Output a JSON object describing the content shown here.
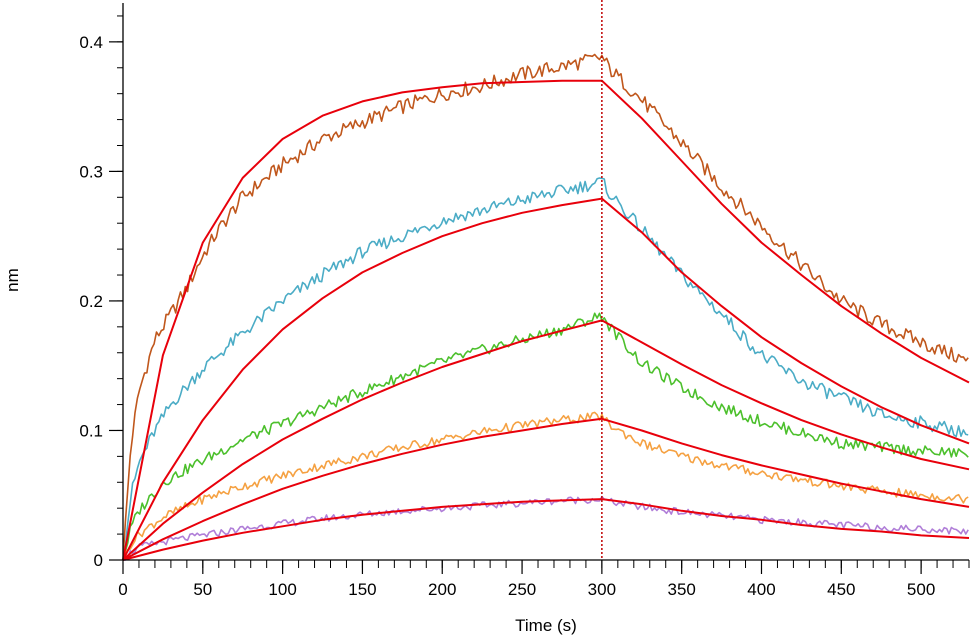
{
  "chart_data": {
    "type": "line",
    "xlabel": "Time (s)",
    "ylabel": "nm",
    "xlim": [
      0,
      530
    ],
    "ylim": [
      0,
      0.43
    ],
    "x_ticks": [
      0,
      50,
      100,
      150,
      200,
      250,
      300,
      350,
      400,
      450,
      500
    ],
    "x_tick_labels": [
      "0",
      "50",
      "100",
      "150",
      "200",
      "250",
      "300",
      "350",
      "400",
      "450",
      "500"
    ],
    "y_ticks": [
      0,
      0.1,
      0.2,
      0.3,
      0.4
    ],
    "y_tick_labels": [
      "0",
      "0.1",
      "0.2",
      "0.3",
      "0.4"
    ],
    "x_minor_step": 10,
    "y_minor_step": 0.02,
    "dissociation_start": 300,
    "marker_line": {
      "x": 300,
      "color": "#c00000",
      "style": "dotted"
    },
    "fit_color": "#e8000b",
    "series": [
      {
        "color": "#c0571c",
        "x": [
          0,
          5,
          10,
          20,
          30,
          40,
          50,
          60,
          75,
          100,
          125,
          150,
          175,
          200,
          225,
          250,
          275,
          300,
          305,
          325,
          350,
          375,
          400,
          425,
          450,
          475,
          500,
          530
        ],
        "y": [
          0,
          0.09,
          0.13,
          0.17,
          0.19,
          0.21,
          0.235,
          0.255,
          0.28,
          0.305,
          0.325,
          0.338,
          0.35,
          0.36,
          0.366,
          0.375,
          0.381,
          0.388,
          0.379,
          0.355,
          0.322,
          0.288,
          0.258,
          0.228,
          0.2,
          0.182,
          0.168,
          0.153
        ]
      },
      {
        "color": "#4bacc6",
        "x": [
          0,
          5,
          10,
          20,
          30,
          50,
          75,
          100,
          125,
          150,
          175,
          200,
          225,
          250,
          275,
          300,
          305,
          325,
          350,
          375,
          400,
          425,
          450,
          475,
          500,
          530
        ],
        "y": [
          0,
          0.05,
          0.075,
          0.1,
          0.12,
          0.148,
          0.175,
          0.2,
          0.22,
          0.238,
          0.25,
          0.262,
          0.27,
          0.278,
          0.285,
          0.292,
          0.283,
          0.255,
          0.22,
          0.19,
          0.158,
          0.138,
          0.125,
          0.112,
          0.106,
          0.098
        ]
      },
      {
        "color": "#4cc02c",
        "x": [
          0,
          5,
          10,
          25,
          50,
          75,
          100,
          125,
          150,
          175,
          200,
          225,
          250,
          275,
          300,
          305,
          325,
          350,
          375,
          400,
          425,
          450,
          475,
          500,
          530
        ],
        "y": [
          0,
          0.025,
          0.038,
          0.06,
          0.077,
          0.093,
          0.105,
          0.118,
          0.13,
          0.142,
          0.153,
          0.162,
          0.17,
          0.178,
          0.189,
          0.18,
          0.152,
          0.133,
          0.118,
          0.107,
          0.098,
          0.09,
          0.087,
          0.084,
          0.082
        ]
      },
      {
        "color": "#f5a142",
        "x": [
          0,
          5,
          10,
          25,
          50,
          75,
          100,
          125,
          150,
          175,
          200,
          225,
          250,
          275,
          300,
          305,
          325,
          350,
          375,
          400,
          425,
          450,
          475,
          500,
          530
        ],
        "y": [
          0,
          0.013,
          0.02,
          0.033,
          0.047,
          0.057,
          0.065,
          0.073,
          0.08,
          0.087,
          0.093,
          0.099,
          0.104,
          0.108,
          0.111,
          0.104,
          0.09,
          0.08,
          0.073,
          0.067,
          0.062,
          0.057,
          0.053,
          0.05,
          0.047
        ]
      },
      {
        "color": "#b07ed8",
        "x": [
          0,
          5,
          10,
          25,
          50,
          75,
          100,
          125,
          150,
          175,
          200,
          225,
          250,
          275,
          300,
          305,
          325,
          350,
          375,
          400,
          425,
          450,
          475,
          500,
          530
        ],
        "y": [
          0,
          0.006,
          0.01,
          0.014,
          0.019,
          0.024,
          0.028,
          0.032,
          0.035,
          0.038,
          0.04,
          0.042,
          0.044,
          0.046,
          0.047,
          0.045,
          0.041,
          0.037,
          0.034,
          0.031,
          0.029,
          0.027,
          0.025,
          0.024,
          0.022
        ]
      }
    ],
    "fits": [
      {
        "name": "fit",
        "x": [
          0,
          25,
          50,
          75,
          100,
          125,
          150,
          175,
          200,
          225,
          250,
          275,
          300,
          325,
          350,
          375,
          400,
          425,
          450,
          475,
          500,
          530
        ],
        "y": [
          0,
          0.158,
          0.245,
          0.295,
          0.325,
          0.343,
          0.354,
          0.361,
          0.365,
          0.368,
          0.369,
          0.37,
          0.37,
          0.341,
          0.308,
          0.275,
          0.245,
          0.22,
          0.196,
          0.175,
          0.156,
          0.137
        ]
      },
      {
        "name": "fit",
        "x": [
          0,
          25,
          50,
          75,
          100,
          125,
          150,
          175,
          200,
          225,
          250,
          275,
          300,
          325,
          350,
          375,
          400,
          425,
          450,
          475,
          500,
          530
        ],
        "y": [
          0,
          0.06,
          0.108,
          0.147,
          0.178,
          0.202,
          0.222,
          0.237,
          0.25,
          0.26,
          0.268,
          0.274,
          0.279,
          0.253,
          0.222,
          0.196,
          0.172,
          0.152,
          0.134,
          0.118,
          0.104,
          0.09
        ]
      },
      {
        "name": "fit",
        "x": [
          0,
          25,
          50,
          75,
          100,
          125,
          150,
          175,
          200,
          225,
          250,
          275,
          300,
          325,
          350,
          375,
          400,
          425,
          450,
          475,
          500,
          530
        ],
        "y": [
          0,
          0.028,
          0.052,
          0.074,
          0.093,
          0.109,
          0.124,
          0.137,
          0.149,
          0.159,
          0.169,
          0.177,
          0.185,
          0.168,
          0.151,
          0.135,
          0.121,
          0.108,
          0.097,
          0.087,
          0.078,
          0.07
        ]
      },
      {
        "name": "fit",
        "x": [
          0,
          25,
          50,
          75,
          100,
          125,
          150,
          175,
          200,
          225,
          250,
          275,
          300,
          325,
          350,
          375,
          400,
          425,
          450,
          475,
          500,
          530
        ],
        "y": [
          0,
          0.016,
          0.03,
          0.043,
          0.055,
          0.065,
          0.074,
          0.082,
          0.089,
          0.095,
          0.1,
          0.105,
          0.109,
          0.1,
          0.09,
          0.081,
          0.073,
          0.066,
          0.059,
          0.053,
          0.047,
          0.041
        ]
      },
      {
        "name": "fit",
        "x": [
          0,
          25,
          50,
          75,
          100,
          125,
          150,
          175,
          200,
          225,
          250,
          275,
          300,
          325,
          350,
          375,
          400,
          425,
          450,
          475,
          500,
          530
        ],
        "y": [
          0,
          0.008,
          0.015,
          0.021,
          0.026,
          0.031,
          0.035,
          0.038,
          0.041,
          0.043,
          0.045,
          0.046,
          0.047,
          0.043,
          0.038,
          0.034,
          0.031,
          0.027,
          0.024,
          0.022,
          0.019,
          0.017
        ]
      }
    ]
  }
}
